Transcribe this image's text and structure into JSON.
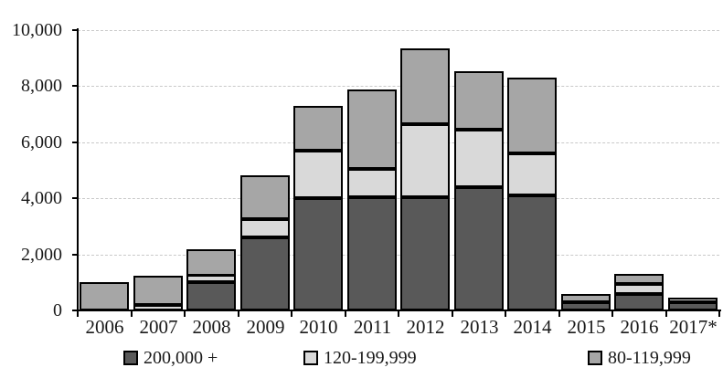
{
  "chart_data": {
    "type": "bar",
    "stacked": true,
    "title": "",
    "xlabel": "",
    "ylabel": "",
    "categories": [
      "2006",
      "2007",
      "2008",
      "2009",
      "2010",
      "2011",
      "2012",
      "2013",
      "2014",
      "2015",
      "2016",
      "2017*"
    ],
    "series": [
      {
        "name": "200,000 +",
        "color": "#595959",
        "values": [
          0,
          0,
          1000,
          2600,
          4000,
          4050,
          4050,
          4400,
          4100,
          300,
          600,
          280
        ]
      },
      {
        "name": "120-199,999",
        "color": "#d9d9d9",
        "values": [
          0,
          200,
          250,
          650,
          1700,
          1000,
          2600,
          2050,
          1500,
          0,
          350,
          170
        ]
      },
      {
        "name": "80-119,999",
        "color": "#a6a6a6",
        "values": [
          1000,
          1050,
          950,
          1550,
          1600,
          2850,
          2700,
          2100,
          2700,
          300,
          350,
          0
        ]
      }
    ],
    "totals": [
      1000,
      1250,
      2200,
      4800,
      7300,
      7900,
      9350,
      8550,
      8300,
      600,
      1300,
      450
    ],
    "ylim": [
      0,
      10000
    ],
    "y_ticks": [
      0,
      2000,
      4000,
      6000,
      8000,
      10000
    ],
    "y_tick_labels": [
      "0",
      "2,000",
      "4,000",
      "6,000",
      "8,000",
      "10,000"
    ],
    "grid": "horizontal-dashed",
    "legend_position": "bottom",
    "legend_labels": [
      "200,000 +",
      "120-199,999",
      "80-119,999"
    ]
  },
  "style": {
    "background": "#ffffff",
    "axis_color": "#000000",
    "gridline_color": "#c9c9c9",
    "bar_border_color": "#000000",
    "text_color": "#1a1a1a"
  }
}
